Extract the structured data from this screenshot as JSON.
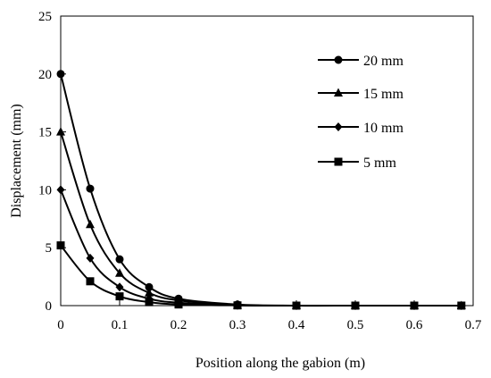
{
  "chart_data": {
    "type": "line",
    "xlabel": "Position along the gabion (m)",
    "ylabel": "Displacement (mm)",
    "xlim": [
      0,
      0.7
    ],
    "ylim": [
      0,
      25
    ],
    "xticks": [
      "0",
      "0.1",
      "0.2",
      "0.3",
      "0.4",
      "0.5",
      "0.6",
      "0.7"
    ],
    "yticks": [
      "0",
      "5",
      "10",
      "15",
      "20",
      "25"
    ],
    "grid": false,
    "legend_position": "top-right",
    "series": [
      {
        "name": "20 mm",
        "marker": "circle",
        "x": [
          0,
          0.05,
          0.1,
          0.15,
          0.2,
          0.3,
          0.4,
          0.5,
          0.6,
          0.68
        ],
        "y": [
          20,
          10.1,
          4.0,
          1.6,
          0.6,
          0.1,
          0,
          0,
          0,
          0
        ]
      },
      {
        "name": "15 mm",
        "marker": "triangle",
        "x": [
          0,
          0.05,
          0.1,
          0.15,
          0.2,
          0.3,
          0.4,
          0.5,
          0.6,
          0.68
        ],
        "y": [
          15,
          7.0,
          2.8,
          1.1,
          0.45,
          0.05,
          0,
          0,
          0,
          0
        ]
      },
      {
        "name": "10 mm",
        "marker": "diamond",
        "x": [
          0,
          0.05,
          0.1,
          0.15,
          0.2,
          0.3,
          0.4,
          0.5,
          0.6,
          0.68
        ],
        "y": [
          10,
          4.1,
          1.6,
          0.6,
          0.25,
          0.03,
          0,
          0,
          0,
          0
        ]
      },
      {
        "name": "5 mm",
        "marker": "square",
        "x": [
          0,
          0.05,
          0.1,
          0.15,
          0.2,
          0.3,
          0.4,
          0.5,
          0.6,
          0.68
        ],
        "y": [
          5.2,
          2.1,
          0.8,
          0.3,
          0.1,
          0.02,
          0,
          0,
          0,
          0
        ]
      }
    ]
  }
}
